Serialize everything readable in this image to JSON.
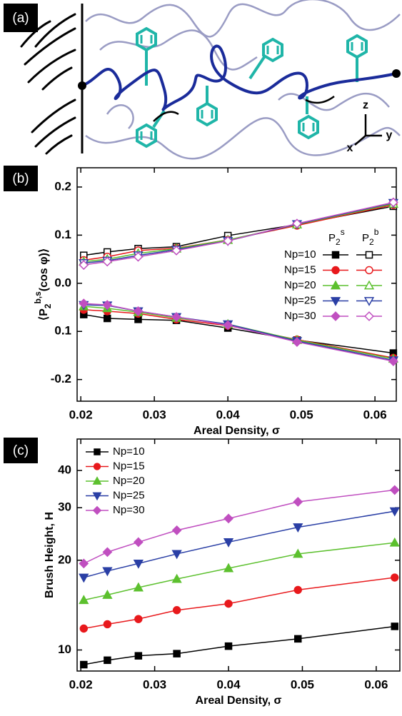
{
  "diagram": {
    "panel_label": "(a)",
    "axis_labels": [
      "z",
      "y",
      "x"
    ]
  },
  "chart_data": [
    {
      "type": "line",
      "panel_label": "(b)",
      "y_label": {
        "main": "⟨P",
        "sub": "2",
        "sup": "b,s",
        "rest": "(cos φ)⟩"
      },
      "x_label": "Areal Density, σ",
      "legend_headers": [
        {
          "main": "P",
          "sub": "2",
          "sup": "s"
        },
        {
          "main": "P",
          "sub": "2",
          "sup": "b"
        }
      ],
      "x": [
        0.0204,
        0.0236,
        0.0278,
        0.033,
        0.04,
        0.0494,
        0.0625
      ],
      "xlim": [
        0.0195,
        0.0629
      ],
      "xticks": [
        0.02,
        0.03,
        0.04,
        0.05,
        0.06
      ],
      "ylim": [
        -0.245,
        0.24
      ],
      "yticks": [
        -0.2,
        {
          "value": -0.1,
          "label": "0.1"
        },
        {
          "value": 0,
          "label": "0.0"
        },
        0.1,
        0.2
      ],
      "series": [
        {
          "name": "Np=10",
          "color": "#000000",
          "marker": "square",
          "s_values": [
            -0.065,
            -0.073,
            -0.075,
            -0.077,
            -0.093,
            -0.118,
            -0.145
          ],
          "b_values": [
            0.058,
            0.065,
            0.072,
            0.076,
            0.099,
            0.122,
            0.16
          ]
        },
        {
          "name": "Np=15",
          "color": "#e8191c",
          "marker": "circle",
          "s_values": [
            -0.055,
            -0.058,
            -0.063,
            -0.075,
            -0.088,
            -0.117,
            -0.155
          ],
          "b_values": [
            0.048,
            0.055,
            0.068,
            0.073,
            0.09,
            0.12,
            0.163
          ]
        },
        {
          "name": "Np=20",
          "color": "#5cc02e",
          "marker": "triangle-up",
          "s_values": [
            -0.048,
            -0.052,
            -0.06,
            -0.072,
            -0.085,
            -0.118,
            -0.157
          ],
          "b_values": [
            0.045,
            0.05,
            0.062,
            0.072,
            0.09,
            0.122,
            0.165
          ]
        },
        {
          "name": "Np=25",
          "color": "#2a3fa5",
          "marker": "triangle-down",
          "s_values": [
            -0.045,
            -0.046,
            -0.058,
            -0.07,
            -0.085,
            -0.12,
            -0.16
          ],
          "b_values": [
            0.042,
            0.047,
            0.058,
            0.07,
            0.088,
            0.123,
            0.167
          ]
        },
        {
          "name": "Np=30",
          "color": "#c04fc0",
          "marker": "diamond",
          "s_values": [
            -0.042,
            -0.045,
            -0.058,
            -0.07,
            -0.087,
            -0.122,
            -0.162
          ],
          "b_values": [
            0.038,
            0.045,
            0.055,
            0.068,
            0.088,
            0.124,
            0.168
          ]
        }
      ]
    },
    {
      "type": "line",
      "panel_label": "(c)",
      "y_label": "Brush Height, H",
      "x_label": "Areal Density, σ",
      "log_y": true,
      "x": [
        0.0204,
        0.0236,
        0.0278,
        0.033,
        0.04,
        0.0494,
        0.0625
      ],
      "xlim": [
        0.0195,
        0.0632
      ],
      "xticks": [
        0.02,
        0.03,
        0.04,
        0.05,
        0.06
      ],
      "ylim": [
        8.5,
        51
      ],
      "yticks": [
        10,
        20,
        30,
        40
      ],
      "series": [
        {
          "name": "Np=10",
          "color": "#000000",
          "marker": "square",
          "values": [
            8.93,
            9.24,
            9.56,
            9.72,
            10.3,
            10.9,
            12.0
          ]
        },
        {
          "name": "Np=15",
          "color": "#e8191c",
          "marker": "circle",
          "values": [
            11.8,
            12.2,
            12.7,
            13.6,
            14.3,
            15.9,
            17.5
          ]
        },
        {
          "name": "Np=20",
          "color": "#5cc02e",
          "marker": "triangle-up",
          "values": [
            14.7,
            15.3,
            16.2,
            17.3,
            18.8,
            21.0,
            22.9
          ]
        },
        {
          "name": "Np=25",
          "color": "#2a3fa5",
          "marker": "triangle-down",
          "values": [
            17.5,
            18.4,
            19.5,
            21.0,
            23.0,
            25.8,
            29.2
          ]
        },
        {
          "name": "Np=30",
          "color": "#c04fc0",
          "marker": "diamond",
          "values": [
            19.5,
            21.3,
            23.0,
            25.2,
            27.6,
            31.4,
            34.4
          ]
        }
      ]
    }
  ]
}
